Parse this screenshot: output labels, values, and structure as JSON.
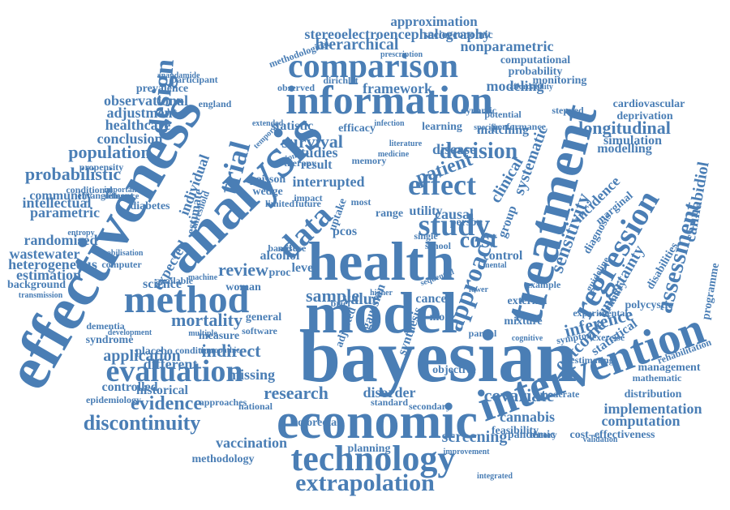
{
  "word_cloud": {
    "color": "#4a7eb5",
    "words": [
      "bayesian",
      "model",
      "health",
      "analysis",
      "effectiveness",
      "treatment",
      "economic",
      "information",
      "intervention",
      "method",
      "comparison",
      "regression",
      "technology",
      "evaluation",
      "data",
      "effect",
      "approach",
      "study",
      "trial",
      "design",
      "extrapolation",
      "assessment",
      "cost",
      "decision",
      "sensitivity",
      "discontinuity",
      "evidence",
      "inference",
      "longitudinal",
      "patient",
      "clinical",
      "uncertainty",
      "population",
      "survival",
      "probabilistic",
      "observational",
      "covariate",
      "mortality",
      "review",
      "indirect",
      "systematic",
      "sample",
      "research",
      "framework",
      "value",
      "hierarchical",
      "stereoelectroencephalography",
      "approximation",
      "nonparametric",
      "modeling",
      "outcome",
      "incidence",
      "cannabidiol",
      "interrupted",
      "screening",
      "implementation",
      "computation",
      "vaccination",
      "application",
      "missing",
      "statistic",
      "adjustment",
      "healthcare",
      "conclusion",
      "parametric",
      "intellectual",
      "randomised",
      "wastewater",
      "heterogeneous",
      "estimation",
      "community",
      "prevalence",
      "individual",
      "studies",
      "disease",
      "result",
      "matching",
      "learning",
      "modelling",
      "simulation",
      "management",
      "rehabilitation",
      "statistical",
      "polycystic",
      "cannabis",
      "pandemic",
      "disorder",
      "cancer",
      "person",
      "level",
      "control",
      "group",
      "causal",
      "alcohol",
      "woman",
      "science",
      "placebo",
      "different",
      "historical",
      "controlled",
      "epidemiology",
      "methodology",
      "colorectal",
      "planning",
      "feasibility",
      "cost–effectiveness",
      "socioeconomic",
      "computational",
      "probability",
      "monitoring",
      "cardiovascular",
      "deprivation",
      "disabilities",
      "programme",
      "primary",
      "diagnosis",
      "marginal",
      "mathematic",
      "distribution",
      "exercise",
      "mixture",
      "partial",
      "objective",
      "synthesis",
      "gaussian",
      "adjusted",
      "national",
      "approaches",
      "measure",
      "syndrome",
      "dementia",
      "background",
      "estimate",
      "expected",
      "threshold",
      "diabetes",
      "entanglement",
      "propensity",
      "conditional",
      "england",
      "participant",
      "anandamide",
      "methodological",
      "observed",
      "dirichlet",
      "prescription",
      "affordability",
      "efficacy",
      "infection",
      "poisson",
      "wedge",
      "memory",
      "uptake",
      "pcos",
      "range",
      "utility",
      "school",
      "limited",
      "based",
      "misuse",
      "proc",
      "brief",
      "more",
      "most",
      "single",
      "theory",
      "stepped",
      "guideline",
      "experimental",
      "integrated",
      "rotation",
      "specific",
      "potential",
      "performance",
      "dynamic",
      "therapy",
      "medicine",
      "literature",
      "mental",
      "general",
      "software",
      "development",
      "condition",
      "multiple",
      "machine",
      "neuropathic",
      "transmission",
      "available",
      "computer",
      "mobilisation",
      "difference",
      "important",
      "temporal",
      "extended",
      "entropy",
      "impact",
      "future",
      "secondary",
      "standard",
      "moderate",
      "external",
      "example",
      "symptom",
      "estimating",
      "validation",
      "improvement",
      "cognitive",
      "lower",
      "higher",
      "sequential"
    ]
  }
}
